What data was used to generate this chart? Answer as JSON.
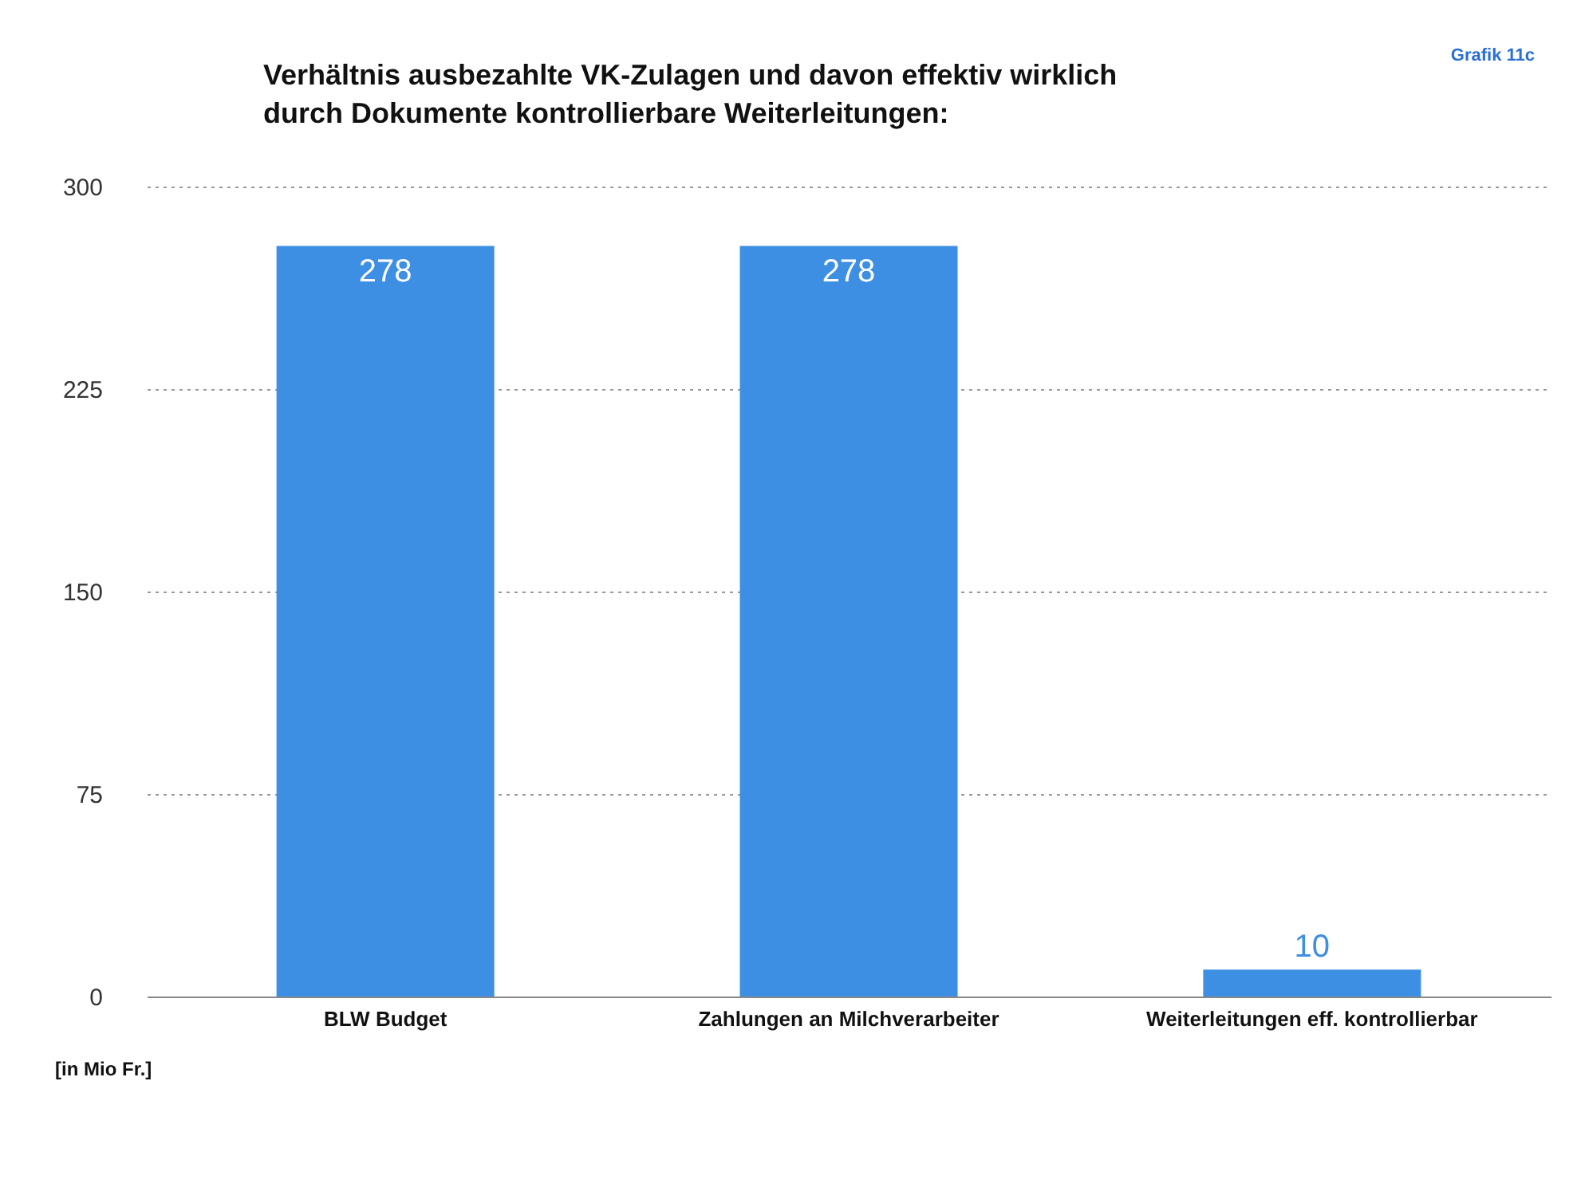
{
  "chart_data": {
    "type": "bar",
    "title": "Verhältnis ausbezahlte VK-Zulagen und davon effektiv wirklich\ndurch Dokumente kontrollierbare Weiterleitungen:",
    "ylabel": "[in Mio Fr.]",
    "annotations": [
      "Grafik 11c"
    ],
    "categories": [
      "BLW Budget",
      "Zahlungen an Milchverarbeiter",
      "Weiterleitungen eff. kontrollierbar"
    ],
    "values": [
      278,
      278,
      10
    ],
    "color": "#3d8fe3",
    "ylim": [
      0,
      300
    ],
    "yticks": [
      0,
      75,
      150,
      225,
      300
    ],
    "grid": "y",
    "data_labels": true
  }
}
